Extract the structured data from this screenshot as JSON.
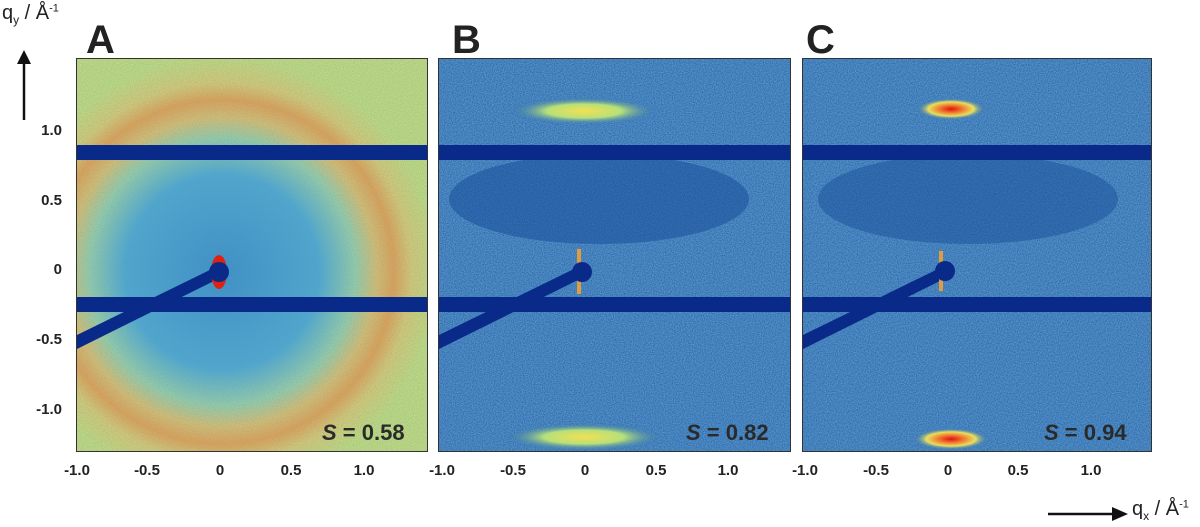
{
  "axes": {
    "y_label": "q",
    "y_sub": "y",
    "x_label": "q",
    "x_sub": "x",
    "unit_main": " / Å",
    "unit_exp": "-1",
    "y_ticks": [
      "1.0",
      "0.5",
      "0",
      "-0.5",
      "-1.0"
    ],
    "x_ticks": [
      "-1.0",
      "-0.5",
      "0",
      "0.5",
      "1.0"
    ]
  },
  "panels": [
    {
      "label": "A",
      "s_symbol": "S",
      "s_text": " = 0.58",
      "order_parameter": 0.58
    },
    {
      "label": "B",
      "s_symbol": "S",
      "s_text": " = 0.82",
      "order_parameter": 0.82
    },
    {
      "label": "C",
      "s_symbol": "S",
      "s_text": " = 0.94",
      "order_parameter": 0.94
    }
  ],
  "colors": {
    "beamstop": "#0a2a8a",
    "bg_low": "#1f5fb0",
    "bg_mid": "#4bb4d0",
    "ring_high": "#f4b030",
    "peak": "#e02010"
  }
}
